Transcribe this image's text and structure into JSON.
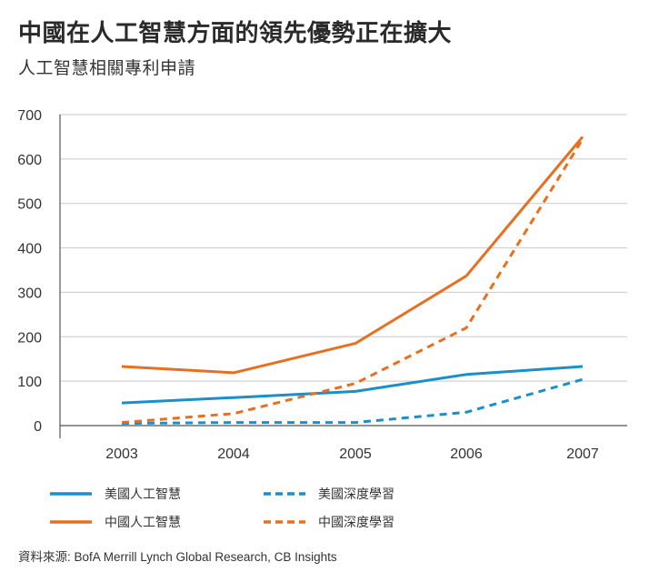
{
  "title": "中國在人工智慧方面的領先優勢正在擴大",
  "subtitle": "人工智慧相關專利申請",
  "source": "資料來源: BofA Merrill Lynch Global Research, CB Insights",
  "colors": {
    "us": "#1a8fc9",
    "china": "#e86f1f",
    "grid": "#c9c9c9",
    "axis": "#555555"
  },
  "chart_data": {
    "type": "line",
    "categories": [
      "2003",
      "2004",
      "2005",
      "2006",
      "2007"
    ],
    "ylim": [
      0,
      700
    ],
    "yticks": [
      "0",
      "100",
      "200",
      "300",
      "400",
      "500",
      "600",
      "700"
    ],
    "grid": "horizontal",
    "legend_position": "bottom",
    "series": [
      {
        "name": "美國人工智慧",
        "values": [
          51,
          63,
          77,
          115,
          133
        ],
        "color": "#1a8fc9",
        "style": "solid"
      },
      {
        "name": "中國人工智慧",
        "values": [
          133,
          119,
          185,
          337,
          650
        ],
        "color": "#e86f1f",
        "style": "solid"
      },
      {
        "name": "美國深度學習",
        "values": [
          5,
          7,
          7,
          30,
          104
        ],
        "color": "#1a8fc9",
        "style": "dashed"
      },
      {
        "name": "中國深度學習",
        "values": [
          7,
          27,
          95,
          220,
          645
        ],
        "color": "#e86f1f",
        "style": "dashed"
      }
    ]
  }
}
